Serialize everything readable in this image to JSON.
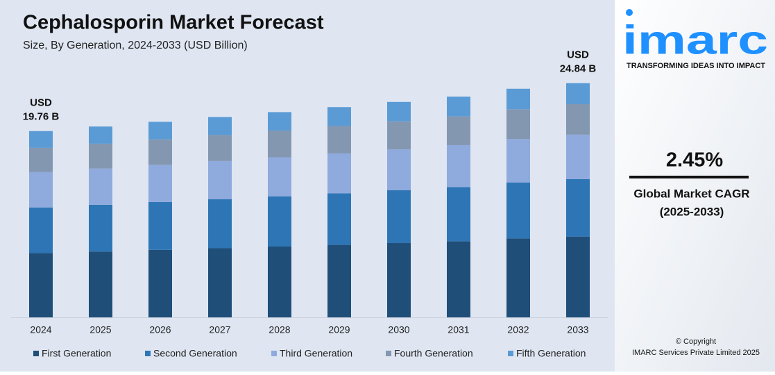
{
  "chart_data": {
    "type": "stacked_bar",
    "title": "Cephalosporin Market Forecast",
    "subtitle": "Size, By Generation, 2024-2033 (USD Billion)",
    "categories": [
      "2024",
      "2025",
      "2026",
      "2027",
      "2028",
      "2029",
      "2030",
      "2031",
      "2032",
      "2033"
    ],
    "series": [
      {
        "name": "First Generation",
        "color": "#1f4e79",
        "values": [
          6.82,
          6.98,
          7.16,
          7.33,
          7.51,
          7.69,
          7.88,
          8.08,
          8.37,
          8.57
        ]
      },
      {
        "name": "Second Generation",
        "color": "#2e75b6",
        "values": [
          4.84,
          4.96,
          5.08,
          5.21,
          5.33,
          5.46,
          5.6,
          5.74,
          5.94,
          6.09
        ]
      },
      {
        "name": "Third Generation",
        "color": "#8faadc",
        "values": [
          3.75,
          3.85,
          3.94,
          4.04,
          4.14,
          4.24,
          4.34,
          4.45,
          4.61,
          4.72
        ]
      },
      {
        "name": "Fourth Generation",
        "color": "#8497b0",
        "values": [
          2.57,
          2.63,
          2.7,
          2.76,
          2.83,
          2.9,
          2.97,
          3.04,
          3.15,
          3.23
        ]
      },
      {
        "name": "Fifth Generation",
        "color": "#5b9bd5",
        "values": [
          1.78,
          1.82,
          1.86,
          1.91,
          1.96,
          2.01,
          2.06,
          2.1,
          2.18,
          2.23
        ]
      }
    ],
    "annotations": [
      {
        "category": "2024",
        "lines": [
          "USD",
          "19.76 B"
        ]
      },
      {
        "category": "2033",
        "lines": [
          "USD",
          "24.84 B"
        ]
      }
    ],
    "ylim": [
      0,
      26
    ],
    "legend": "bottom"
  },
  "sidebar": {
    "logo": "imarc",
    "tagline": "TRANSFORMING IDEAS INTO IMPACT",
    "cagr_value": "2.45%",
    "cagr_label": [
      "Global Market CAGR",
      "(2025-2033)"
    ],
    "copyright": [
      "© Copyright",
      "IMARC Services Private Limited 2025"
    ]
  }
}
